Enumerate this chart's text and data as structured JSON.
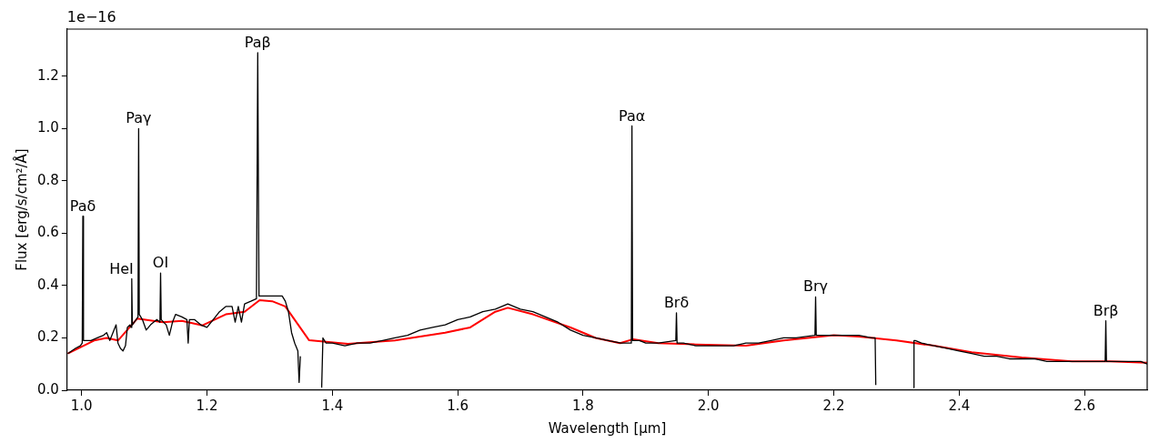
{
  "chart_data": {
    "type": "line",
    "xlabel": "Wavelength [μm]",
    "ylabel": "Flux [erg/s/cm²/Å]",
    "xlim": [
      0.977,
      2.7
    ],
    "ylim": [
      0,
      1.38
    ],
    "xticks": [
      {
        "value": 1,
        "label": "1.0"
      },
      {
        "value": 1.2,
        "label": "1.2"
      },
      {
        "value": 1.4,
        "label": "1.4"
      },
      {
        "value": 1.6,
        "label": "1.6"
      },
      {
        "value": 1.8,
        "label": "1.8"
      },
      {
        "value": 2,
        "label": "2.0"
      },
      {
        "value": 2.2,
        "label": "2.2"
      },
      {
        "value": 2.4,
        "label": "2.4"
      },
      {
        "value": 2.6,
        "label": "2.6"
      }
    ],
    "yticks": [
      {
        "value": 0,
        "label": "0.0"
      },
      {
        "value": 0.2,
        "label": "0.2"
      },
      {
        "value": 0.4,
        "label": "0.4"
      },
      {
        "value": 0.6,
        "label": "0.6"
      },
      {
        "value": 0.8,
        "label": "0.8"
      },
      {
        "value": 1,
        "label": "1.0"
      },
      {
        "value": 1.2,
        "label": "1.2"
      }
    ],
    "grid": false,
    "legend": false,
    "marker": "none",
    "line_style": "solid",
    "series": [
      {
        "color": "#000000",
        "x": [
          0.978,
          0.99,
          0.998,
          1.001,
          1.002,
          1.003,
          1.015,
          1.025,
          1.035,
          1.04,
          1.045,
          1.05,
          1.055,
          1.058,
          1.062,
          1.066,
          1.07,
          1.073,
          1.077,
          1.079,
          1.08,
          1.081,
          1.087,
          1.09,
          1.091,
          1.092,
          1.097,
          1.103,
          1.11,
          1.12,
          1.125,
          1.126,
          1.127,
          1.135,
          1.14,
          1.145,
          1.15,
          1.16,
          1.168,
          1.17,
          1.172,
          1.18,
          1.19,
          1.2,
          1.21,
          1.22,
          1.23,
          1.24,
          1.245,
          1.25,
          1.255,
          1.26,
          1.27,
          1.279,
          1.281,
          1.283,
          1.29,
          1.3,
          1.31,
          1.32,
          1.325,
          1.33,
          1.335,
          1.34,
          1.345,
          1.347,
          1.349,
          1.365,
          1.383,
          1.385,
          1.39,
          1.4,
          1.42,
          1.44,
          1.46,
          1.48,
          1.5,
          1.52,
          1.54,
          1.56,
          1.58,
          1.6,
          1.62,
          1.64,
          1.66,
          1.68,
          1.7,
          1.72,
          1.74,
          1.76,
          1.78,
          1.8,
          1.82,
          1.84,
          1.86,
          1.877,
          1.878,
          1.879,
          1.89,
          1.9,
          1.92,
          1.948,
          1.949,
          1.95,
          1.96,
          1.98,
          2.0,
          2.02,
          2.04,
          2.06,
          2.08,
          2.1,
          2.12,
          2.14,
          2.17,
          2.171,
          2.172,
          2.18,
          2.2,
          2.22,
          2.24,
          2.26,
          2.266,
          2.267,
          2.3,
          2.327,
          2.328,
          2.33,
          2.34,
          2.36,
          2.38,
          2.4,
          2.42,
          2.44,
          2.46,
          2.48,
          2.5,
          2.52,
          2.54,
          2.56,
          2.58,
          2.6,
          2.633,
          2.634,
          2.635,
          2.65,
          2.67,
          2.69,
          2.7
        ],
        "values": [
          0.14,
          0.16,
          0.17,
          0.18,
          0.665,
          0.19,
          0.19,
          0.2,
          0.21,
          0.22,
          0.19,
          0.22,
          0.25,
          0.18,
          0.16,
          0.15,
          0.17,
          0.24,
          0.25,
          0.24,
          0.426,
          0.25,
          0.27,
          0.28,
          1.0,
          0.29,
          0.27,
          0.23,
          0.25,
          0.27,
          0.26,
          0.448,
          0.27,
          0.25,
          0.21,
          0.26,
          0.29,
          0.28,
          0.27,
          0.18,
          0.27,
          0.27,
          0.25,
          0.24,
          0.27,
          0.3,
          0.32,
          0.32,
          0.26,
          0.32,
          0.26,
          0.33,
          0.34,
          0.35,
          1.29,
          0.36,
          0.36,
          0.36,
          0.36,
          0.36,
          0.34,
          0.3,
          0.22,
          0.18,
          0.15,
          0.03,
          0.13,
          null,
          0.01,
          0.2,
          0.18,
          0.18,
          0.17,
          0.18,
          0.18,
          0.19,
          0.2,
          0.21,
          0.23,
          0.24,
          0.25,
          0.27,
          0.28,
          0.3,
          0.31,
          0.33,
          0.31,
          0.3,
          0.28,
          0.26,
          0.23,
          0.21,
          0.2,
          0.19,
          0.18,
          0.18,
          1.01,
          0.19,
          0.19,
          0.18,
          0.18,
          0.19,
          0.296,
          0.18,
          0.18,
          0.17,
          0.17,
          0.17,
          0.17,
          0.18,
          0.18,
          0.19,
          0.2,
          0.2,
          0.21,
          0.357,
          0.21,
          0.21,
          0.21,
          0.21,
          0.21,
          0.2,
          0.2,
          0.02,
          null,
          0.01,
          0.19,
          0.19,
          0.18,
          0.17,
          0.16,
          0.15,
          0.14,
          0.13,
          0.13,
          0.12,
          0.12,
          0.12,
          0.11,
          0.11,
          0.11,
          0.11,
          0.11,
          0.265,
          0.11,
          0.11,
          0.11,
          0.11,
          0.1
        ]
      },
      {
        "color": "#ff0000",
        "x": [
          0.978,
          1.02,
          1.04,
          1.058,
          1.089,
          1.13,
          1.16,
          1.193,
          1.23,
          1.26,
          1.284,
          1.304,
          1.325,
          1.363,
          1.425,
          1.5,
          1.58,
          1.62,
          1.66,
          1.68,
          1.72,
          1.78,
          1.82,
          1.859,
          1.88,
          1.92,
          1.98,
          2.06,
          2.12,
          2.2,
          2.24,
          2.3,
          2.36,
          2.42,
          2.5,
          2.58,
          2.64,
          2.7
        ],
        "values": [
          0.14,
          0.19,
          0.2,
          0.19,
          0.274,
          0.26,
          0.265,
          0.248,
          0.29,
          0.3,
          0.344,
          0.34,
          0.32,
          0.191,
          0.177,
          0.19,
          0.22,
          0.24,
          0.3,
          0.315,
          0.29,
          0.24,
          0.2,
          0.18,
          0.195,
          0.18,
          0.175,
          0.17,
          0.19,
          0.21,
          0.205,
          0.19,
          0.17,
          0.145,
          0.125,
          0.11,
          0.11,
          0.105
        ]
      }
    ],
    "annotations": [
      "1e−16",
      {
        "text": "Paδ",
        "x": 1.002,
        "y": 0.665
      },
      {
        "text": "HeI",
        "x": 1.08,
        "y": 0.426
      },
      {
        "text": "Paγ",
        "x": 1.091,
        "y": 1.0
      },
      {
        "text": "OI",
        "x": 1.126,
        "y": 0.448
      },
      {
        "text": "Paβ",
        "x": 1.281,
        "y": 1.29
      },
      {
        "text": "Paα",
        "x": 1.878,
        "y": 1.01
      },
      {
        "text": "Brδ",
        "x": 1.949,
        "y": 0.296
      },
      {
        "text": "Brγ",
        "x": 2.171,
        "y": 0.357
      },
      {
        "text": "Brβ",
        "x": 2.634,
        "y": 0.265
      }
    ]
  }
}
